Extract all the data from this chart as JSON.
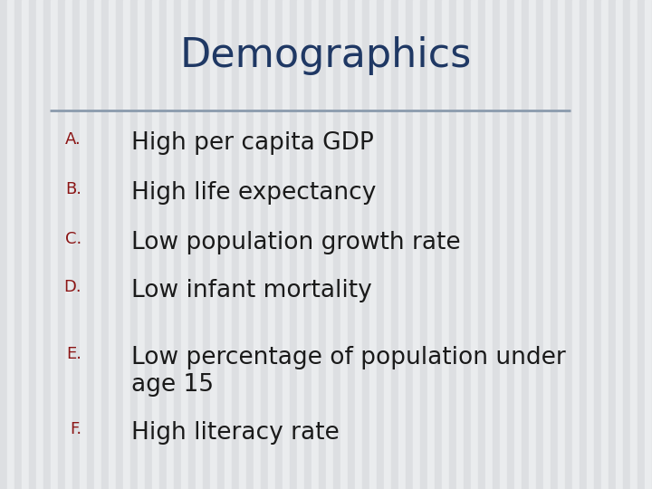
{
  "title": "Demographics",
  "title_color": "#1F3864",
  "title_fontsize": 32,
  "background_color": "#E8EAEC",
  "stripe_light": "#EAECEE",
  "stripe_dark": "#DDDFE2",
  "divider_color": "#8B9BAD",
  "label_color": "#8B1515",
  "text_color": "#1A1A1A",
  "label_fontsize": 13,
  "text_fontsize": 19,
  "items": [
    {
      "label": "A.",
      "text": "High per capita GDP"
    },
    {
      "label": "B.",
      "text": "High life expectancy"
    },
    {
      "label": "C.",
      "text": "Low population growth rate"
    },
    {
      "label": "D.",
      "text": "Low infant mortality"
    },
    {
      "label": "E.",
      "text": "Low percentage of population under\nage 15"
    },
    {
      "label": "F.",
      "text": "High literacy rate"
    }
  ]
}
